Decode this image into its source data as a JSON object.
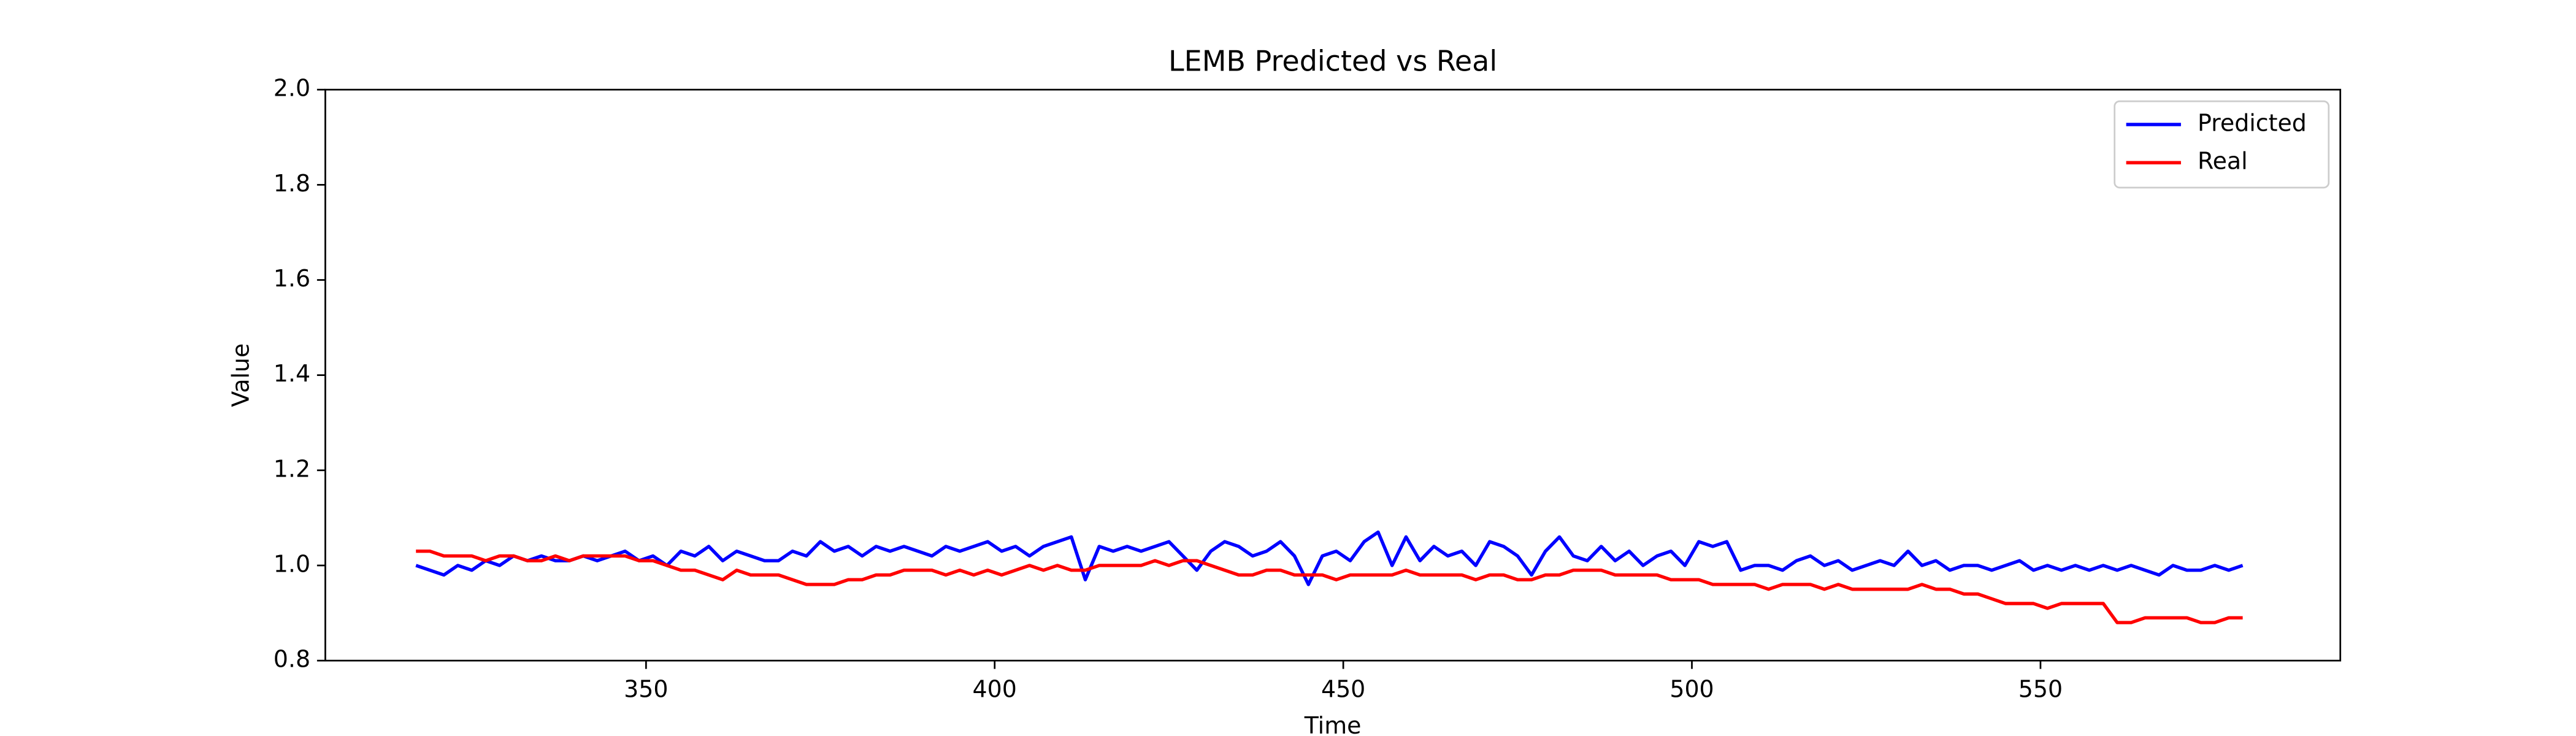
{
  "chart_data": {
    "type": "line",
    "title": "LEMB Predicted vs Real",
    "xlabel": "Time",
    "ylabel": "Value",
    "x": [
      317,
      319,
      321,
      323,
      325,
      327,
      329,
      331,
      333,
      335,
      337,
      339,
      341,
      343,
      345,
      347,
      349,
      351,
      353,
      355,
      357,
      359,
      361,
      363,
      365,
      367,
      369,
      371,
      373,
      375,
      377,
      379,
      381,
      383,
      385,
      387,
      389,
      391,
      393,
      395,
      397,
      399,
      401,
      403,
      405,
      407,
      409,
      411,
      413,
      415,
      417,
      419,
      421,
      423,
      425,
      427,
      429,
      431,
      433,
      435,
      437,
      439,
      441,
      443,
      445,
      447,
      449,
      451,
      453,
      455,
      457,
      459,
      461,
      463,
      465,
      467,
      469,
      471,
      473,
      475,
      477,
      479,
      481,
      483,
      485,
      487,
      489,
      491,
      493,
      495,
      497,
      499,
      501,
      503,
      505,
      507,
      509,
      511,
      513,
      515,
      517,
      519,
      521,
      523,
      525,
      527,
      529,
      531,
      533,
      535,
      537,
      539,
      541,
      543,
      545,
      547,
      549,
      551,
      553,
      555,
      557,
      559,
      561,
      563,
      565,
      567,
      569,
      571,
      573,
      575,
      577,
      579
    ],
    "series": [
      {
        "name": "Predicted",
        "color": "#0000ff",
        "values": [
          1.0,
          0.99,
          0.98,
          1.0,
          0.99,
          1.01,
          1.0,
          1.02,
          1.01,
          1.02,
          1.01,
          1.01,
          1.02,
          1.01,
          1.02,
          1.03,
          1.01,
          1.02,
          1.0,
          1.03,
          1.02,
          1.04,
          1.01,
          1.03,
          1.02,
          1.01,
          1.01,
          1.03,
          1.02,
          1.05,
          1.03,
          1.04,
          1.02,
          1.04,
          1.03,
          1.04,
          1.03,
          1.02,
          1.04,
          1.03,
          1.04,
          1.05,
          1.03,
          1.04,
          1.02,
          1.04,
          1.05,
          1.06,
          0.97,
          1.04,
          1.03,
          1.04,
          1.03,
          1.04,
          1.05,
          1.02,
          0.99,
          1.03,
          1.05,
          1.04,
          1.02,
          1.03,
          1.05,
          1.02,
          0.96,
          1.02,
          1.03,
          1.01,
          1.05,
          1.07,
          1.0,
          1.06,
          1.01,
          1.04,
          1.02,
          1.03,
          1.0,
          1.05,
          1.04,
          1.02,
          0.98,
          1.03,
          1.06,
          1.02,
          1.01,
          1.04,
          1.01,
          1.03,
          1.0,
          1.02,
          1.03,
          1.0,
          1.05,
          1.04,
          1.05,
          0.99,
          1.0,
          1.0,
          0.99,
          1.01,
          1.02,
          1.0,
          1.01,
          0.99,
          1.0,
          1.01,
          1.0,
          1.03,
          1.0,
          1.01,
          0.99,
          1.0,
          1.0,
          0.99,
          1.0,
          1.01,
          0.99,
          1.0,
          0.99,
          1.0,
          0.99,
          1.0,
          0.99,
          1.0,
          0.99,
          0.98,
          1.0,
          0.99,
          0.99,
          1.0,
          0.99,
          1.0
        ]
      },
      {
        "name": "Real",
        "color": "#ff0000",
        "values": [
          1.03,
          1.03,
          1.02,
          1.02,
          1.02,
          1.01,
          1.02,
          1.02,
          1.01,
          1.01,
          1.02,
          1.01,
          1.02,
          1.02,
          1.02,
          1.02,
          1.01,
          1.01,
          1.0,
          0.99,
          0.99,
          0.98,
          0.97,
          0.99,
          0.98,
          0.98,
          0.98,
          0.97,
          0.96,
          0.96,
          0.96,
          0.97,
          0.97,
          0.98,
          0.98,
          0.99,
          0.99,
          0.99,
          0.98,
          0.99,
          0.98,
          0.99,
          0.98,
          0.99,
          1.0,
          0.99,
          1.0,
          0.99,
          0.99,
          1.0,
          1.0,
          1.0,
          1.0,
          1.01,
          1.0,
          1.01,
          1.01,
          1.0,
          0.99,
          0.98,
          0.98,
          0.99,
          0.99,
          0.98,
          0.98,
          0.98,
          0.97,
          0.98,
          0.98,
          0.98,
          0.98,
          0.99,
          0.98,
          0.98,
          0.98,
          0.98,
          0.97,
          0.98,
          0.98,
          0.97,
          0.97,
          0.98,
          0.98,
          0.99,
          0.99,
          0.99,
          0.98,
          0.98,
          0.98,
          0.98,
          0.97,
          0.97,
          0.97,
          0.96,
          0.96,
          0.96,
          0.96,
          0.95,
          0.96,
          0.96,
          0.96,
          0.95,
          0.96,
          0.95,
          0.95,
          0.95,
          0.95,
          0.95,
          0.96,
          0.95,
          0.95,
          0.94,
          0.94,
          0.93,
          0.92,
          0.92,
          0.92,
          0.91,
          0.92,
          0.92,
          0.92,
          0.92,
          0.88,
          0.88,
          0.89,
          0.89,
          0.89,
          0.89,
          0.88,
          0.88,
          0.89,
          0.89
        ]
      }
    ],
    "xlim": [
      304,
      593
    ],
    "ylim": [
      0.8,
      2.0
    ],
    "xticks": [
      350,
      400,
      450,
      500,
      550
    ],
    "yticks": [
      0.8,
      {
        "value": 1,
        "label": "1.0"
      },
      1.2,
      1.4,
      1.6,
      1.8,
      {
        "value": 2,
        "label": "2.0"
      }
    ],
    "legend": "upper right"
  }
}
